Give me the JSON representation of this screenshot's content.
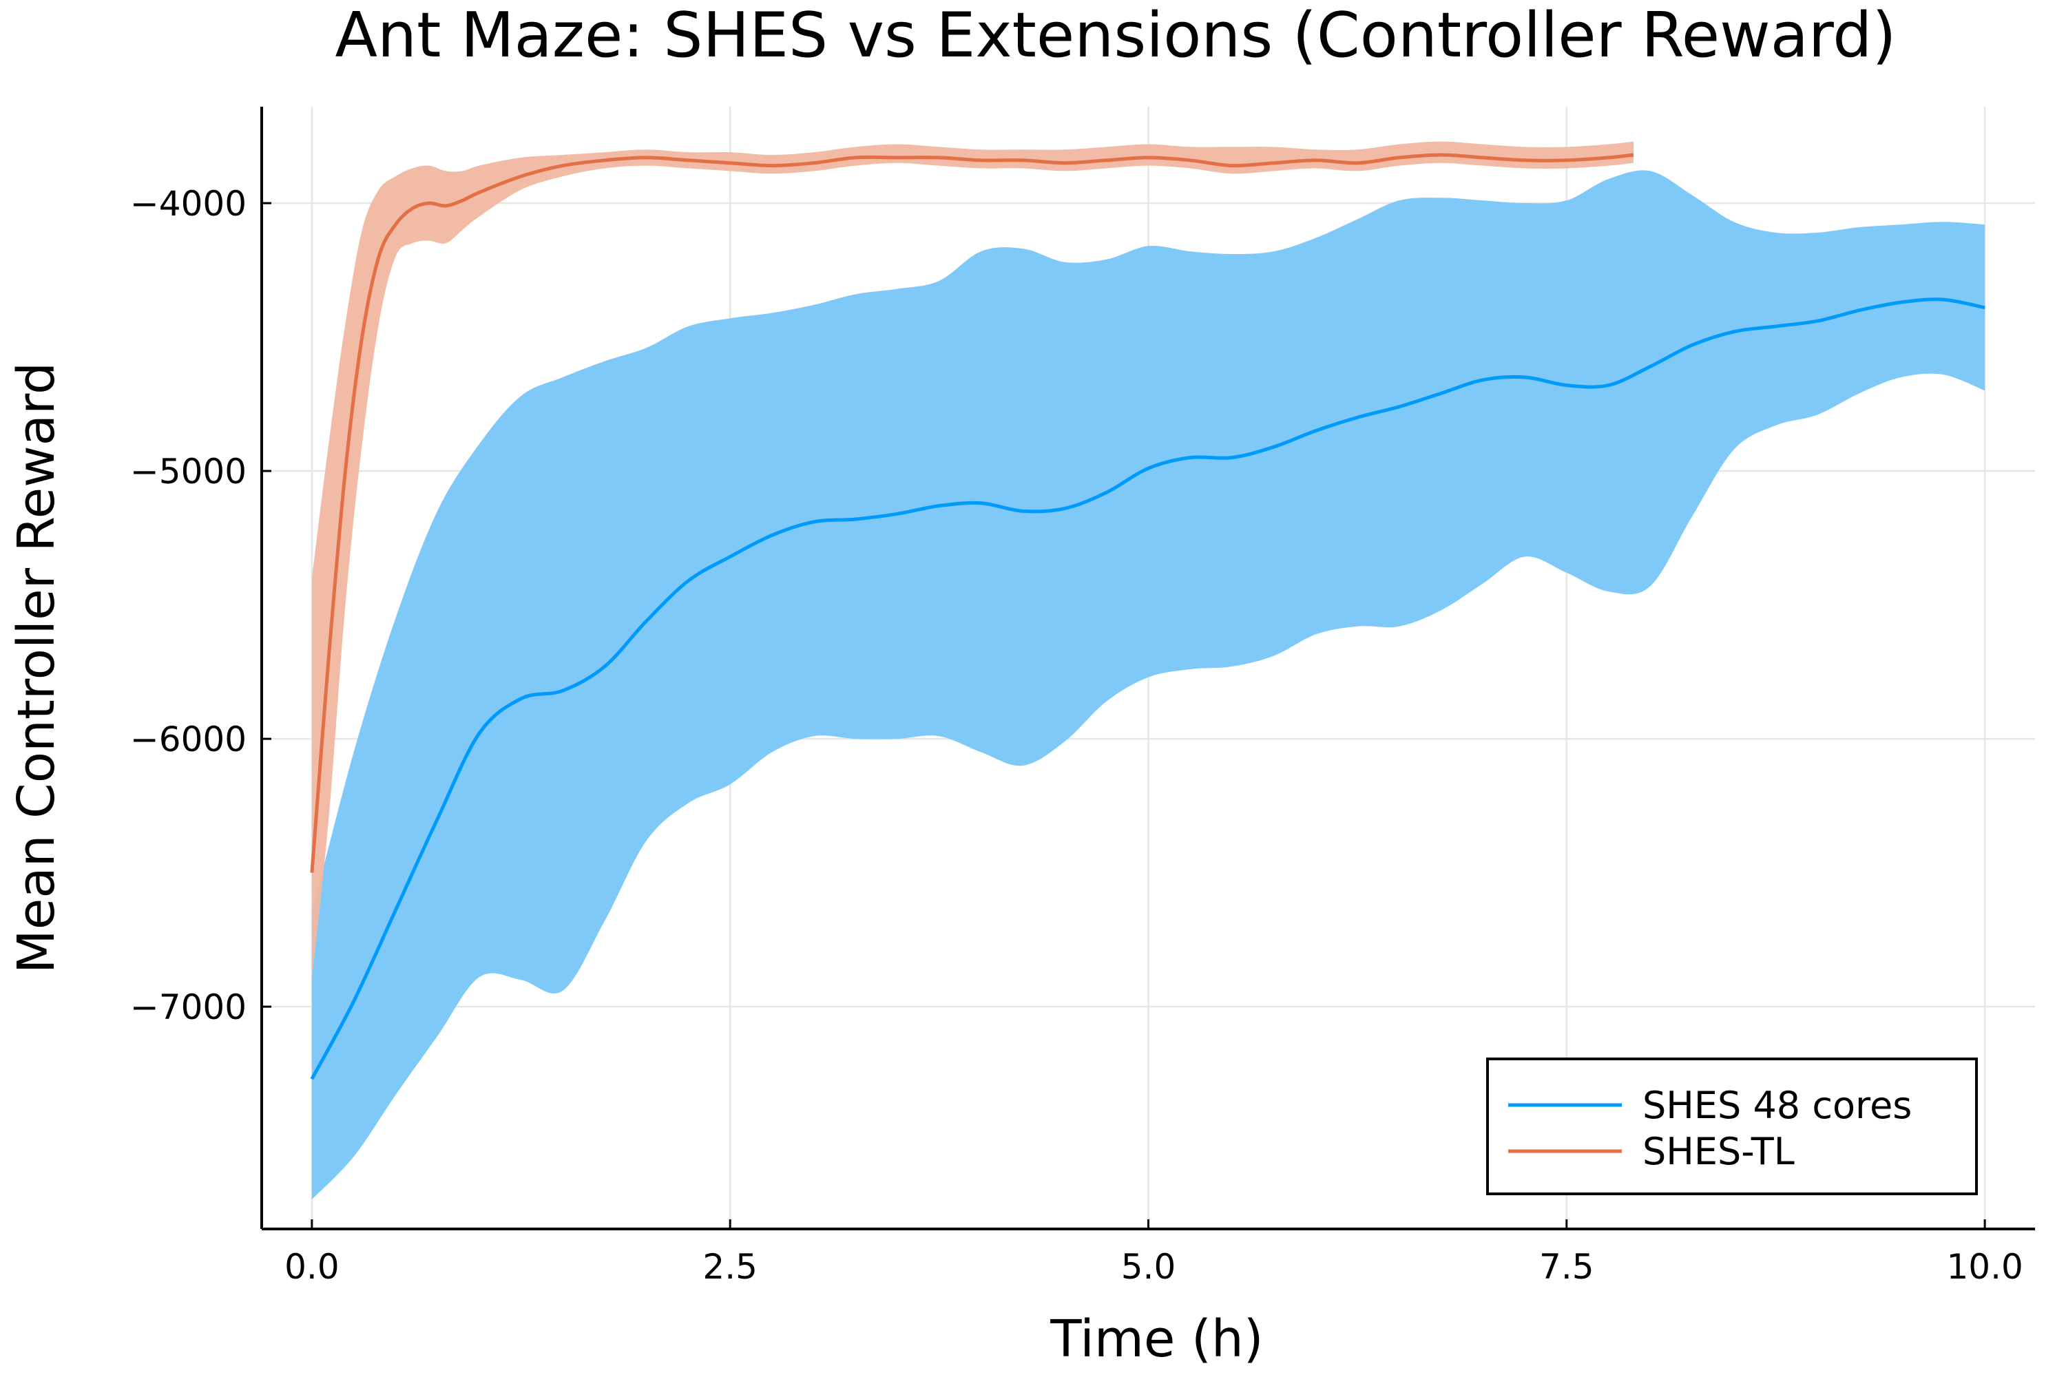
{
  "chart_data": {
    "type": "line",
    "title": "Ant Maze: SHES vs Extensions (Controller Reward)",
    "xlabel": "Time (h)",
    "ylabel": "Mean Controller Reward",
    "xlim": [
      -0.3,
      10.3
    ],
    "ylim": [
      -7830,
      -3640
    ],
    "xticks": [
      0,
      2.5,
      5,
      7.5,
      10
    ],
    "xtick_labels": [
      "0.0",
      "2.5",
      "5.0",
      "7.5",
      "10.0"
    ],
    "yticks": [
      -7000,
      -6000,
      -5000,
      -4000
    ],
    "ytick_labels": [
      "−7000",
      "−6000",
      "−5000",
      "−4000"
    ],
    "grid": true,
    "legend_position": "bottom-right",
    "series": [
      {
        "name": "SHES 48 cores",
        "color": "#009AFA",
        "band_color": "#7FC9F9",
        "x": [
          0,
          0.25,
          0.5,
          0.75,
          1.0,
          1.25,
          1.5,
          1.75,
          2.0,
          2.25,
          2.5,
          2.75,
          3.0,
          3.25,
          3.5,
          3.75,
          4.0,
          4.25,
          4.5,
          4.75,
          5.0,
          5.25,
          5.5,
          5.75,
          6.0,
          6.25,
          6.5,
          6.75,
          7.0,
          7.25,
          7.5,
          7.75,
          8.0,
          8.25,
          8.5,
          8.75,
          9.0,
          9.25,
          9.5,
          9.75,
          10.0
        ],
        "y": [
          -7270,
          -6980,
          -6640,
          -6300,
          -5980,
          -5850,
          -5820,
          -5730,
          -5560,
          -5410,
          -5320,
          -5240,
          -5190,
          -5180,
          -5160,
          -5130,
          -5120,
          -5150,
          -5140,
          -5080,
          -4990,
          -4950,
          -4950,
          -4910,
          -4850,
          -4800,
          -4760,
          -4710,
          -4660,
          -4650,
          -4680,
          -4680,
          -4610,
          -4530,
          -4480,
          -4460,
          -4440,
          -4400,
          -4370,
          -4360,
          -4390
        ],
        "upper": [
          -6650,
          -6050,
          -5550,
          -5150,
          -4900,
          -4720,
          -4650,
          -4590,
          -4540,
          -4460,
          -4430,
          -4410,
          -4380,
          -4340,
          -4320,
          -4290,
          -4180,
          -4170,
          -4220,
          -4210,
          -4160,
          -4180,
          -4190,
          -4180,
          -4130,
          -4060,
          -3990,
          -3980,
          -3990,
          -4000,
          -3990,
          -3910,
          -3880,
          -3970,
          -4070,
          -4110,
          -4110,
          -4090,
          -4080,
          -4070,
          -4080
        ],
        "lower": [
          -7720,
          -7560,
          -7330,
          -7110,
          -6890,
          -6900,
          -6940,
          -6680,
          -6380,
          -6240,
          -6170,
          -6050,
          -5990,
          -6000,
          -6000,
          -5990,
          -6050,
          -6100,
          -6010,
          -5860,
          -5770,
          -5740,
          -5730,
          -5690,
          -5610,
          -5580,
          -5580,
          -5520,
          -5420,
          -5320,
          -5380,
          -5450,
          -5430,
          -5170,
          -4920,
          -4830,
          -4790,
          -4710,
          -4650,
          -4640,
          -4700
        ]
      },
      {
        "name": "SHES-TL",
        "color": "#E26F46",
        "band_color": "#F0B7A1",
        "x": [
          0,
          0.1,
          0.2,
          0.3,
          0.4,
          0.5,
          0.6,
          0.7,
          0.8,
          0.9,
          1.0,
          1.25,
          1.5,
          1.75,
          2.0,
          2.25,
          2.5,
          2.75,
          3.0,
          3.25,
          3.5,
          3.75,
          4.0,
          4.25,
          4.5,
          4.75,
          5.0,
          5.25,
          5.5,
          5.75,
          6.0,
          6.25,
          6.5,
          6.75,
          7.0,
          7.25,
          7.5,
          7.75,
          7.9
        ],
        "y": [
          -6500,
          -5700,
          -5000,
          -4500,
          -4200,
          -4080,
          -4020,
          -4000,
          -4010,
          -3990,
          -3960,
          -3900,
          -3860,
          -3840,
          -3830,
          -3840,
          -3850,
          -3860,
          -3850,
          -3830,
          -3830,
          -3830,
          -3840,
          -3840,
          -3850,
          -3840,
          -3830,
          -3840,
          -3860,
          -3850,
          -3840,
          -3850,
          -3830,
          -3820,
          -3830,
          -3840,
          -3840,
          -3830,
          -3820
        ],
        "upper": [
          -5400,
          -4900,
          -4450,
          -4100,
          -3950,
          -3900,
          -3870,
          -3860,
          -3880,
          -3880,
          -3860,
          -3830,
          -3820,
          -3810,
          -3800,
          -3810,
          -3810,
          -3820,
          -3810,
          -3790,
          -3780,
          -3790,
          -3800,
          -3800,
          -3800,
          -3790,
          -3780,
          -3790,
          -3790,
          -3790,
          -3800,
          -3800,
          -3780,
          -3770,
          -3780,
          -3790,
          -3790,
          -3780,
          -3770
        ],
        "lower": [
          -6900,
          -6300,
          -5500,
          -4900,
          -4450,
          -4200,
          -4150,
          -4140,
          -4150,
          -4100,
          -4050,
          -3950,
          -3900,
          -3870,
          -3860,
          -3870,
          -3880,
          -3890,
          -3880,
          -3860,
          -3850,
          -3860,
          -3870,
          -3870,
          -3880,
          -3870,
          -3860,
          -3870,
          -3890,
          -3880,
          -3870,
          -3880,
          -3860,
          -3850,
          -3860,
          -3870,
          -3870,
          -3860,
          -3850
        ]
      }
    ]
  }
}
